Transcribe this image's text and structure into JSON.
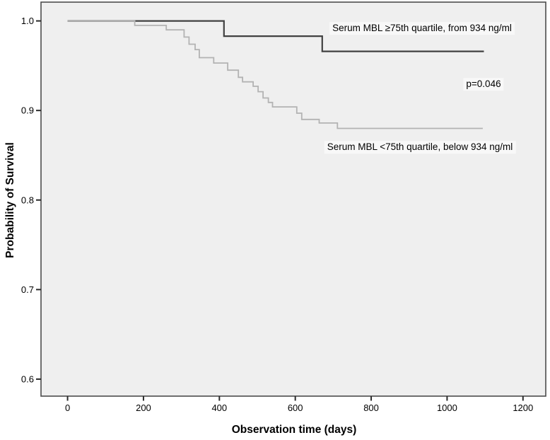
{
  "chart_data": {
    "type": "line",
    "subtype": "kaplan-meier-step",
    "title": "",
    "xlabel": "Observation time (days)",
    "ylabel": "Probability of Survival",
    "xlim": [
      -70,
      1260
    ],
    "ylim": [
      0.581,
      1.021
    ],
    "grid": false,
    "plot_background": "#efefef",
    "frame_color": "#4c4c4c",
    "tick_color": "#2a2a2a",
    "x_ticks": {
      "values": [
        0,
        200,
        400,
        600,
        800,
        1000,
        1200
      ],
      "labels": [
        "0",
        "200",
        "400",
        "600",
        "800",
        "1000",
        "1200"
      ]
    },
    "y_ticks": {
      "values": [
        1.0,
        0.9,
        0.8,
        0.7,
        0.6
      ],
      "labels": [
        "1.0",
        "0.9",
        "0.8",
        "0.7",
        "0.6"
      ]
    },
    "legend_position": "inline-annotations",
    "annotations": {
      "group_high": {
        "text": "Serum MBL ≥75th quartile, from 934 ng/ml"
      },
      "p_value": {
        "text": "p=0.046"
      },
      "group_low": {
        "text": "Serum MBL <75th quartile, below 934 ng/ml"
      }
    },
    "series": [
      {
        "name": "Serum MBL ≥75th quartile, from 934 ng/ml",
        "color": "#414141",
        "stroke_width": 2.2,
        "steps": [
          [
            0,
            1.0
          ],
          [
            412,
            0.983
          ],
          [
            671,
            0.966
          ],
          [
            1097,
            0.966
          ]
        ]
      },
      {
        "name": "Serum MBL <75th quartile, below 934 ng/ml",
        "color": "#b3b3b3",
        "stroke_width": 1.8,
        "steps": [
          [
            0,
            1.0
          ],
          [
            177,
            0.995
          ],
          [
            260,
            0.99
          ],
          [
            307,
            0.982
          ],
          [
            320,
            0.974
          ],
          [
            336,
            0.968
          ],
          [
            347,
            0.959
          ],
          [
            385,
            0.953
          ],
          [
            422,
            0.945
          ],
          [
            450,
            0.937
          ],
          [
            461,
            0.932
          ],
          [
            489,
            0.927
          ],
          [
            502,
            0.921
          ],
          [
            515,
            0.914
          ],
          [
            529,
            0.909
          ],
          [
            540,
            0.904
          ],
          [
            604,
            0.897
          ],
          [
            617,
            0.89
          ],
          [
            663,
            0.886
          ],
          [
            711,
            0.88
          ],
          [
            1094,
            0.88
          ]
        ]
      }
    ]
  }
}
